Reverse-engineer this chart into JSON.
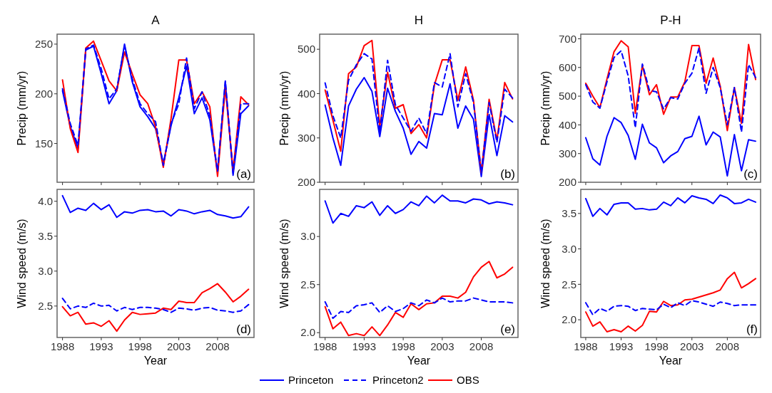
{
  "chart_data": [
    {
      "type": "line",
      "title": "A",
      "ylabel": "Precip (mm/yr)",
      "annotations": [
        "(a)"
      ],
      "tick_labels": "y",
      "x": [
        1988,
        1989,
        1990,
        1991,
        1992,
        1993,
        1994,
        1995,
        1996,
        1997,
        1998,
        1999,
        2000,
        2001,
        2002,
        2003,
        2004,
        2005,
        2006,
        2007,
        2008,
        2009,
        2010,
        2011,
        2012
      ],
      "xlim": [
        1987.3,
        2012.7
      ],
      "xticks": [
        1988,
        1993,
        1998,
        2003,
        2008
      ],
      "ylim": [
        111,
        260
      ],
      "yticks": [
        150,
        200,
        250
      ],
      "series": [
        {
          "color": "#0000ff",
          "line_style": "solid",
          "values": [
            203,
            167,
            145,
            244,
            248,
            220,
            190,
            203,
            250,
            212,
            187,
            177,
            165,
            130,
            168,
            196,
            228,
            180,
            196,
            174,
            121,
            212,
            118,
            180,
            188
          ]
        },
        {
          "color": "#0000ff",
          "line_style": "dashed",
          "values": [
            205,
            170,
            148,
            245,
            249,
            225,
            195,
            205,
            248,
            215,
            190,
            180,
            172,
            128,
            170,
            190,
            236,
            185,
            202,
            178,
            122,
            213,
            120,
            190,
            190
          ]
        },
        {
          "color": "#ff0000",
          "line_style": "solid",
          "values": [
            214,
            165,
            141,
            246,
            253,
            233,
            213,
            203,
            242,
            220,
            199,
            190,
            167,
            126,
            175,
            234,
            234,
            190,
            202,
            187,
            117,
            206,
            123,
            197,
            189
          ]
        }
      ]
    },
    {
      "type": "line",
      "title": "H",
      "ylabel": "Precip (mm/yr)",
      "annotations": [
        "(b)"
      ],
      "tick_labels": "y",
      "x": [
        1988,
        1989,
        1990,
        1991,
        1992,
        1993,
        1994,
        1995,
        1996,
        1997,
        1998,
        1999,
        2000,
        2001,
        2002,
        2003,
        2004,
        2005,
        2006,
        2007,
        2008,
        2009,
        2010,
        2011,
        2012
      ],
      "xlim": [
        1987.3,
        2012.7
      ],
      "xticks": [
        1988,
        1993,
        1998,
        2003,
        2008
      ],
      "ylim": [
        200,
        534
      ],
      "yticks": [
        200,
        300,
        400,
        500
      ],
      "series": [
        {
          "color": "#0000ff",
          "line_style": "solid",
          "values": [
            374,
            300,
            238,
            372,
            410,
            436,
            405,
            303,
            412,
            360,
            322,
            263,
            292,
            277,
            355,
            352,
            422,
            322,
            372,
            342,
            213,
            353,
            260,
            350,
            336
          ]
        },
        {
          "color": "#0000ff",
          "line_style": "dashed",
          "values": [
            424,
            350,
            300,
            430,
            465,
            490,
            478,
            312,
            475,
            375,
            345,
            315,
            345,
            310,
            425,
            415,
            490,
            370,
            445,
            380,
            222,
            380,
            290,
            410,
            390
          ]
        },
        {
          "color": "#ff0000",
          "line_style": "solid",
          "values": [
            408,
            340,
            270,
            445,
            460,
            508,
            520,
            325,
            448,
            367,
            375,
            310,
            330,
            300,
            420,
            476,
            476,
            385,
            460,
            385,
            222,
            387,
            295,
            425,
            388
          ]
        }
      ]
    },
    {
      "type": "line",
      "title": "P-H",
      "ylabel": "Precip (mm/yr)",
      "annotations": [
        "(c)"
      ],
      "tick_labels": "y",
      "x": [
        1988,
        1989,
        1990,
        1991,
        1992,
        1993,
        1994,
        1995,
        1996,
        1997,
        1998,
        1999,
        2000,
        2001,
        2002,
        2003,
        2004,
        2005,
        2006,
        2007,
        2008,
        2009,
        2010,
        2011,
        2012
      ],
      "xlim": [
        1987.3,
        2012.7
      ],
      "xticks": [
        1988,
        1993,
        1998,
        2003,
        2008
      ],
      "ylim": [
        200,
        716
      ],
      "yticks": [
        200,
        300,
        400,
        500,
        600,
        700
      ],
      "series": [
        {
          "color": "#0000ff",
          "line_style": "solid",
          "values": [
            355,
            282,
            260,
            360,
            425,
            408,
            363,
            280,
            402,
            337,
            320,
            268,
            292,
            307,
            352,
            360,
            430,
            330,
            375,
            358,
            222,
            366,
            240,
            348,
            343
          ]
        },
        {
          "color": "#0000ff",
          "line_style": "dashed",
          "values": [
            540,
            480,
            458,
            550,
            635,
            658,
            570,
            390,
            612,
            520,
            515,
            455,
            495,
            490,
            545,
            580,
            668,
            510,
            600,
            530,
            400,
            530,
            375,
            610,
            565
          ]
        },
        {
          "color": "#ff0000",
          "line_style": "solid",
          "values": [
            545,
            500,
            460,
            560,
            655,
            693,
            672,
            440,
            607,
            505,
            540,
            437,
            497,
            497,
            550,
            676,
            676,
            545,
            633,
            535,
            380,
            530,
            405,
            680,
            558
          ]
        }
      ]
    },
    {
      "type": "line",
      "xlabel": "Year",
      "ylabel": "Wind speed (m/s)",
      "annotations": [
        "(d)"
      ],
      "x": [
        1988,
        1989,
        1990,
        1991,
        1992,
        1993,
        1994,
        1995,
        1996,
        1997,
        1998,
        1999,
        2000,
        2001,
        2002,
        2003,
        2004,
        2005,
        2006,
        2007,
        2008,
        2009,
        2010,
        2011,
        2012
      ],
      "xlim": [
        1987.3,
        2012.7
      ],
      "xticks": [
        1988,
        1993,
        1998,
        2003,
        2008
      ],
      "ylim": [
        2.05,
        4.17
      ],
      "yticks": [
        {
          "value": 2.5,
          "label": "2.5"
        },
        {
          "value": 3,
          "label": "3.0"
        },
        {
          "value": 3.5,
          "label": "3.5"
        },
        {
          "value": 4,
          "label": "4.0"
        }
      ],
      "series": [
        {
          "color": "#0000ff",
          "line_style": "solid",
          "values": [
            4.08,
            3.84,
            3.9,
            3.87,
            3.97,
            3.88,
            3.95,
            3.77,
            3.85,
            3.83,
            3.87,
            3.88,
            3.85,
            3.86,
            3.79,
            3.88,
            3.86,
            3.82,
            3.85,
            3.87,
            3.81,
            3.79,
            3.76,
            3.78,
            3.92
          ]
        },
        {
          "color": "#0000ff",
          "line_style": "dashed",
          "values": [
            2.61,
            2.46,
            2.5,
            2.48,
            2.54,
            2.5,
            2.51,
            2.43,
            2.48,
            2.45,
            2.48,
            2.48,
            2.47,
            2.45,
            2.41,
            2.47,
            2.46,
            2.44,
            2.47,
            2.48,
            2.44,
            2.43,
            2.41,
            2.43,
            2.52
          ]
        },
        {
          "color": "#ff0000",
          "line_style": "solid",
          "values": [
            2.49,
            2.36,
            2.41,
            2.24,
            2.26,
            2.21,
            2.29,
            2.14,
            2.3,
            2.41,
            2.38,
            2.39,
            2.4,
            2.47,
            2.45,
            2.57,
            2.55,
            2.55,
            2.69,
            2.75,
            2.82,
            2.7,
            2.56,
            2.64,
            2.74
          ]
        }
      ]
    },
    {
      "type": "line",
      "xlabel": "Year",
      "ylabel": "Wind speed (m/s)",
      "annotations": [
        "(e)"
      ],
      "legend": "bottom",
      "x": [
        1988,
        1989,
        1990,
        1991,
        1992,
        1993,
        1994,
        1995,
        1996,
        1997,
        1998,
        1999,
        2000,
        2001,
        2002,
        2003,
        2004,
        2005,
        2006,
        2007,
        2008,
        2009,
        2010,
        2011,
        2012
      ],
      "xlim": [
        1987.3,
        2012.7
      ],
      "xticks": [
        1988,
        1993,
        1998,
        2003,
        2008
      ],
      "ylim": [
        1.95,
        3.49
      ],
      "yticks": [
        {
          "value": 2,
          "label": "2.0"
        },
        {
          "value": 2.5,
          "label": "2.5"
        },
        {
          "value": 3,
          "label": "3.0"
        }
      ],
      "series": [
        {
          "name": "Princeton",
          "color": "#0000ff",
          "line_style": "solid",
          "values": [
            3.37,
            3.14,
            3.24,
            3.21,
            3.32,
            3.3,
            3.36,
            3.22,
            3.32,
            3.24,
            3.28,
            3.36,
            3.32,
            3.42,
            3.35,
            3.43,
            3.37,
            3.37,
            3.35,
            3.39,
            3.38,
            3.34,
            3.36,
            3.35,
            3.33
          ]
        },
        {
          "name": "Princeton2",
          "color": "#0000ff",
          "line_style": "dashed",
          "values": [
            2.32,
            2.15,
            2.22,
            2.21,
            2.28,
            2.29,
            2.31,
            2.21,
            2.28,
            2.22,
            2.25,
            2.31,
            2.28,
            2.34,
            2.31,
            2.36,
            2.32,
            2.33,
            2.33,
            2.36,
            2.34,
            2.32,
            2.32,
            2.32,
            2.31
          ]
        },
        {
          "name": "OBS",
          "color": "#ff0000",
          "line_style": "solid",
          "values": [
            2.27,
            2.04,
            2.11,
            1.97,
            1.99,
            1.97,
            2.06,
            1.97,
            2.08,
            2.21,
            2.16,
            2.3,
            2.24,
            2.3,
            2.31,
            2.38,
            2.38,
            2.36,
            2.42,
            2.58,
            2.68,
            2.74,
            2.57,
            2.61,
            2.68
          ]
        }
      ]
    },
    {
      "type": "line",
      "xlabel": "Year",
      "ylabel": "Wind speed (m/s)",
      "annotations": [
        "(f)"
      ],
      "x": [
        1988,
        1989,
        1990,
        1991,
        1992,
        1993,
        1994,
        1995,
        1996,
        1997,
        1998,
        1999,
        2000,
        2001,
        2002,
        2003,
        2004,
        2005,
        2006,
        2007,
        2008,
        2009,
        2010,
        2011,
        2012
      ],
      "xlim": [
        1987.3,
        2012.7
      ],
      "xticks": [
        1988,
        1993,
        1998,
        2003,
        2008
      ],
      "ylim": [
        1.75,
        3.84
      ],
      "yticks": [
        {
          "value": 2,
          "label": "2.0"
        },
        {
          "value": 2.5,
          "label": "2.5"
        },
        {
          "value": 3,
          "label": "3.0"
        },
        {
          "value": 3.5,
          "label": "3.5"
        }
      ],
      "series": [
        {
          "color": "#0000ff",
          "line_style": "solid",
          "values": [
            3.71,
            3.46,
            3.57,
            3.48,
            3.63,
            3.65,
            3.65,
            3.56,
            3.57,
            3.55,
            3.56,
            3.66,
            3.61,
            3.72,
            3.65,
            3.75,
            3.72,
            3.7,
            3.64,
            3.76,
            3.72,
            3.64,
            3.65,
            3.7,
            3.66
          ]
        },
        {
          "color": "#0000ff",
          "line_style": "dashed",
          "values": [
            2.24,
            2.07,
            2.16,
            2.12,
            2.19,
            2.2,
            2.19,
            2.13,
            2.16,
            2.15,
            2.14,
            2.22,
            2.17,
            2.24,
            2.2,
            2.27,
            2.25,
            2.22,
            2.19,
            2.25,
            2.23,
            2.2,
            2.21,
            2.21,
            2.21
          ]
        },
        {
          "color": "#ff0000",
          "line_style": "solid",
          "values": [
            2.11,
            1.91,
            1.97,
            1.83,
            1.86,
            1.83,
            1.91,
            1.84,
            1.92,
            2.12,
            2.11,
            2.26,
            2.2,
            2.21,
            2.28,
            2.29,
            2.32,
            2.35,
            2.38,
            2.42,
            2.58,
            2.67,
            2.45,
            2.51,
            2.58
          ]
        }
      ]
    }
  ]
}
